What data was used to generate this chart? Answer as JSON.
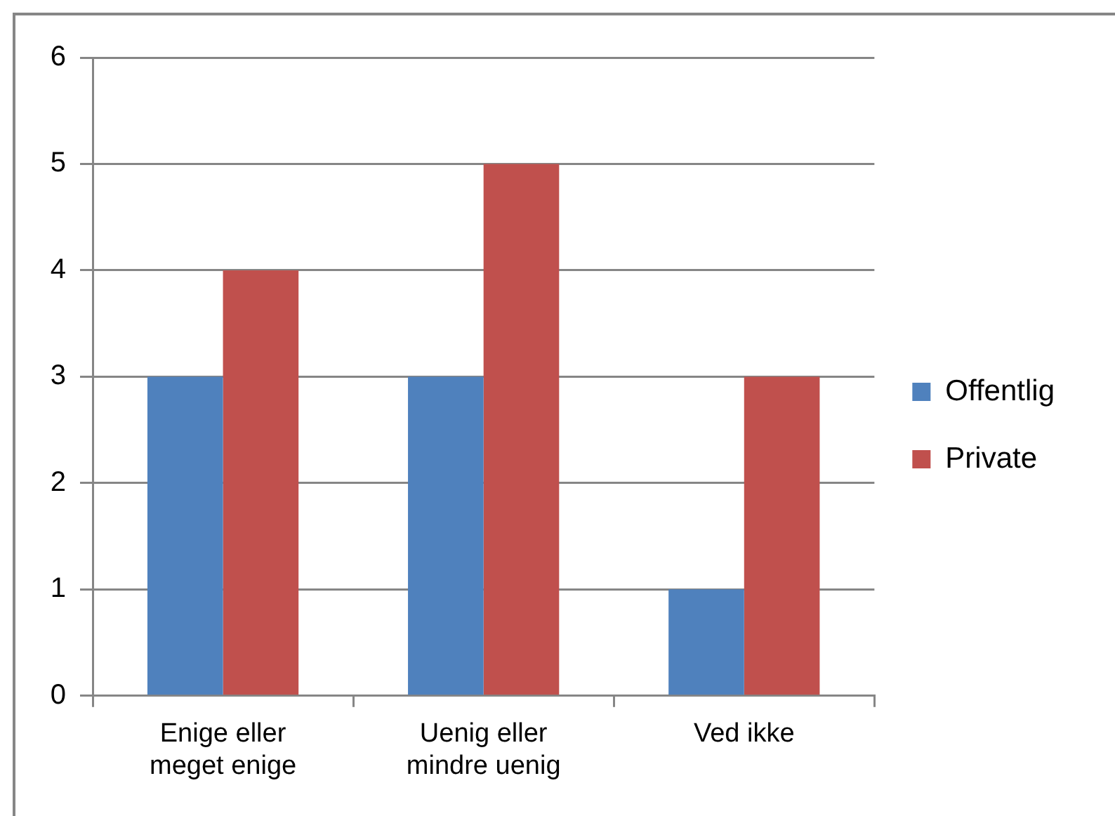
{
  "chart_data": {
    "type": "bar",
    "categories": [
      "Enige eller meget enige",
      "Uenig eller mindre uenig",
      "Ved ikke"
    ],
    "series": [
      {
        "name": "Offentlig",
        "color": "#4f81bd",
        "values": [
          3,
          3,
          1
        ]
      },
      {
        "name": "Private",
        "color": "#c0504d",
        "values": [
          4,
          5,
          3
        ]
      }
    ],
    "ylim": [
      0,
      6
    ],
    "yticks": [
      0,
      1,
      2,
      3,
      4,
      5,
      6
    ],
    "grid": "y",
    "legend": "right"
  }
}
